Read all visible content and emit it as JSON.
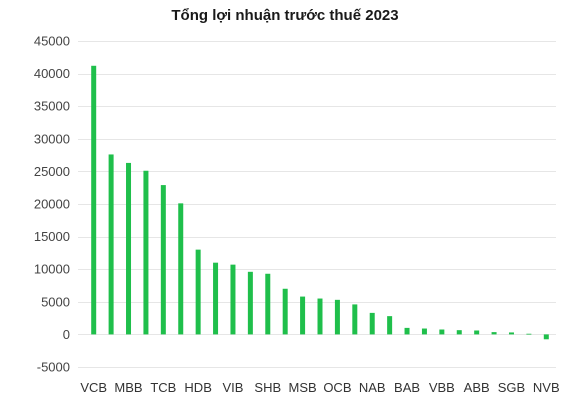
{
  "chart_data": {
    "type": "bar",
    "title": "Tổng lợi nhuận trước thuế 2023",
    "categories": [
      "VCB",
      "",
      "MBB",
      "",
      "TCB",
      "",
      "HDB",
      "",
      "VIB",
      "",
      "SHB",
      "",
      "MSB",
      "",
      "OCB",
      "",
      "NAB",
      "",
      "BAB",
      "",
      "VBB",
      "",
      "ABB",
      "",
      "SGB",
      "",
      "NVB"
    ],
    "values": [
      41200,
      27600,
      26300,
      25100,
      22900,
      20100,
      13000,
      11000,
      10700,
      9600,
      9300,
      7000,
      5800,
      5500,
      5300,
      4600,
      3300,
      2800,
      1000,
      900,
      750,
      650,
      600,
      350,
      300,
      100,
      -750
    ],
    "ylim": [
      -5000,
      45000
    ],
    "yticks": [
      -5000,
      0,
      5000,
      10000,
      15000,
      20000,
      25000,
      30000,
      35000,
      40000,
      45000
    ],
    "grid": true,
    "legend": "none"
  },
  "colors": {
    "bar": "#1fbf4b",
    "grid": "#e6e6e6",
    "title": "#1a1a1a",
    "tick_text": "#444444"
  }
}
